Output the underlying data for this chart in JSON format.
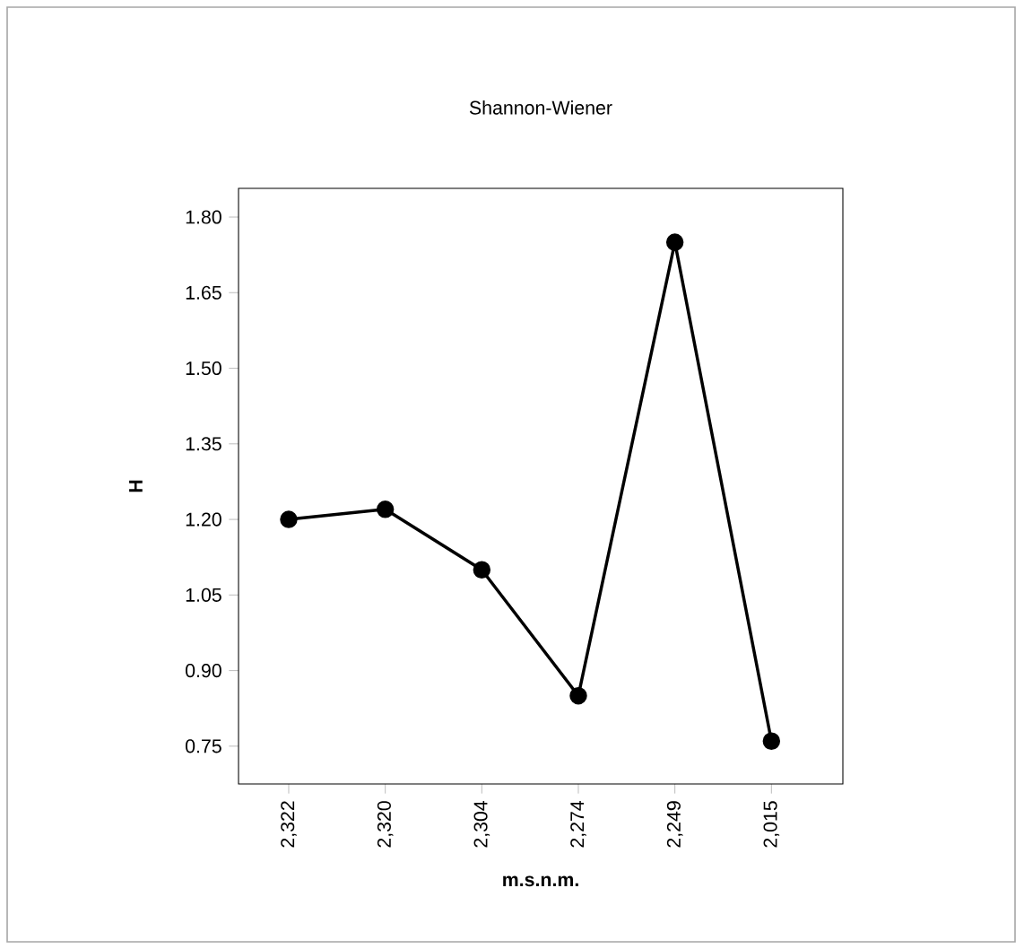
{
  "chart_data": {
    "type": "line",
    "title": "Shannon-Wiener",
    "xlabel": "m.s.n.m.",
    "ylabel": "H",
    "categories": [
      "2,322",
      "2,320",
      "2,304",
      "2,274",
      "2,249",
      "2,015"
    ],
    "values": [
      1.2,
      1.22,
      1.1,
      0.85,
      1.75,
      0.76
    ],
    "color": "#000000",
    "marker": "circle",
    "line_style": "solid",
    "ylim": [
      0.675,
      1.857
    ],
    "yticks": [
      {
        "value": 0.75,
        "label": "0.75"
      },
      {
        "value": 0.9,
        "label": "0.90"
      },
      {
        "value": 1.05,
        "label": "1.05"
      },
      {
        "value": 1.2,
        "label": "1.20"
      },
      {
        "value": 1.35,
        "label": "1.35"
      },
      {
        "value": 1.5,
        "label": "1.50"
      },
      {
        "value": 1.65,
        "label": "1.65"
      },
      {
        "value": 1.8,
        "label": "1.80"
      }
    ],
    "grid": false
  }
}
